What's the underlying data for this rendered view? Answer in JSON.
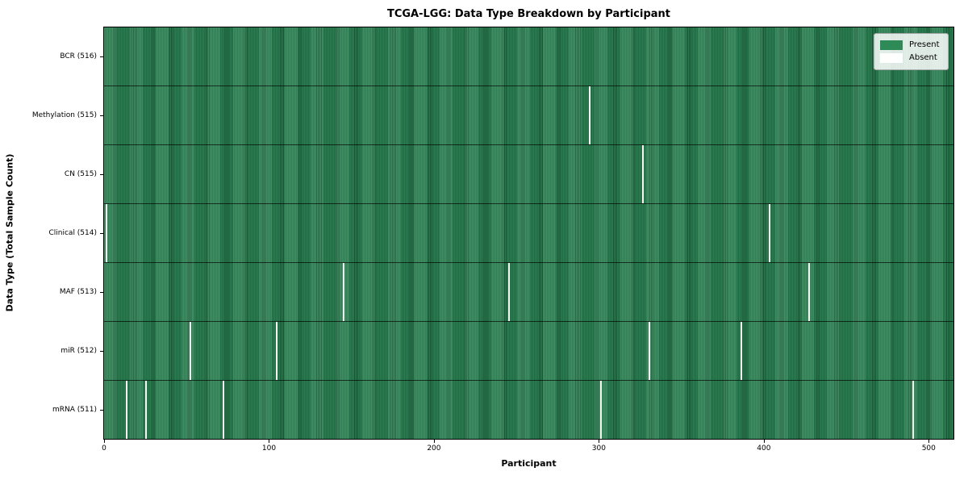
{
  "chart_data": {
    "type": "heatmap",
    "title": "TCGA-LGG: Data Type Breakdown by Participant",
    "xlabel": "Participant",
    "ylabel": "Data Type (Total Sample Count)",
    "n_participants": 516,
    "xlim": [
      0,
      516
    ],
    "x_ticks": [
      0,
      100,
      200,
      300,
      400,
      500
    ],
    "grid": false,
    "legend_position": "upper right",
    "legend": [
      {
        "label": "Present",
        "color": "#2e8b57"
      },
      {
        "label": "Absent",
        "color": "#ffffff"
      }
    ],
    "colors": {
      "present_fill": "#2e8b57",
      "present_edge": "#1d5637",
      "absent_fill": "#f5f5f3",
      "row_separator": "#000000"
    },
    "rows": [
      {
        "label": "BCR (516)",
        "data_type": "BCR",
        "total_samples": 516,
        "absent_participants": []
      },
      {
        "label": "Methylation (515)",
        "data_type": "Methylation",
        "total_samples": 515,
        "absent_participants": [
          294
        ]
      },
      {
        "label": "CN (515)",
        "data_type": "CN",
        "total_samples": 515,
        "absent_participants": [
          326
        ]
      },
      {
        "label": "Clinical (514)",
        "data_type": "Clinical",
        "total_samples": 514,
        "absent_participants": [
          1,
          403
        ]
      },
      {
        "label": "MAF (513)",
        "data_type": "MAF",
        "total_samples": 513,
        "absent_participants": [
          145,
          245,
          427
        ]
      },
      {
        "label": "miR (512)",
        "data_type": "miR",
        "total_samples": 512,
        "absent_participants": [
          52,
          104,
          330,
          386
        ]
      },
      {
        "label": "mRNA (511)",
        "data_type": "mRNA",
        "total_samples": 511,
        "absent_participants": [
          13,
          25,
          72,
          301,
          490
        ]
      }
    ]
  }
}
